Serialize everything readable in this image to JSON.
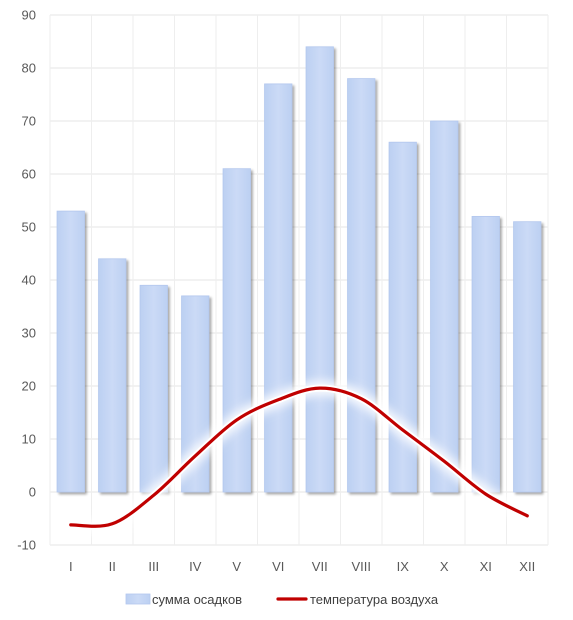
{
  "chart_data": {
    "type": "bar",
    "categories": [
      "I",
      "II",
      "III",
      "IV",
      "V",
      "VI",
      "VII",
      "VIII",
      "IX",
      "X",
      "XI",
      "XII"
    ],
    "series": [
      {
        "name": "сумма осадков",
        "type": "bar",
        "values": [
          53,
          44,
          39,
          37,
          61,
          77,
          84,
          78,
          66,
          70,
          52,
          51
        ],
        "color": "#c5d6f4"
      },
      {
        "name": "температура воздуха",
        "type": "line",
        "values": [
          -6.2,
          -6.0,
          -0.6,
          6.8,
          13.6,
          17.4,
          19.6,
          17.6,
          11.7,
          5.8,
          -0.4,
          -4.5
        ],
        "color": "#c00000"
      }
    ],
    "ylim": [
      -10,
      90
    ],
    "yticks": [
      90,
      80,
      70,
      60,
      50,
      40,
      30,
      20,
      10,
      0,
      -10
    ],
    "grid": true,
    "legend": "bottom"
  }
}
